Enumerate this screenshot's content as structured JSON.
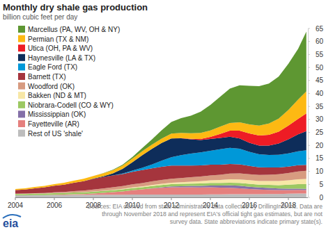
{
  "chart_data": {
    "type": "area",
    "stacked": true,
    "title": "Monthly dry shale gas production",
    "subtitle": "billion cubic feet per day",
    "annotations": [
      "Sources: EIA derived from state administrative data collected by DrillingInfo Inc. Data are",
      "through November 2018  and represent EIA's official tight gas estimates, but are not",
      "survey data. State abbreviations indicate primary state(s)."
    ],
    "logo": "eia",
    "legend": "top-left",
    "grid": false,
    "x": [
      2004,
      2004.5,
      2005,
      2005.5,
      2006,
      2006.5,
      2007,
      2007.5,
      2008,
      2008.5,
      2009,
      2009.5,
      2010,
      2010.5,
      2011,
      2011.5,
      2012,
      2012.5,
      2013,
      2013.5,
      2014,
      2014.5,
      2015,
      2015.5,
      2016,
      2016.5,
      2017,
      2017.5,
      2018,
      2018.5,
      2018.92
    ],
    "xlim": [
      2004,
      2019
    ],
    "xticks": [
      2004,
      2006,
      2008,
      2010,
      2012,
      2014,
      2016,
      2018
    ],
    "ylim": [
      0,
      65
    ],
    "yticks": [
      0,
      5,
      10,
      15,
      20,
      25,
      30,
      35,
      40,
      45,
      50,
      55,
      60,
      65
    ],
    "series": [
      {
        "name": "Marcellus (PA, WV, OH & NY)",
        "color": "#5e9732",
        "values": [
          0,
          0,
          0,
          0,
          0,
          0,
          0,
          0,
          0,
          0.05,
          0.15,
          0.3,
          0.6,
          1.2,
          2.0,
          3.2,
          4.5,
          5.7,
          6.8,
          8.2,
          9.8,
          11.5,
          13.2,
          14.2,
          14.8,
          15.2,
          15.4,
          16.2,
          17.8,
          19.5,
          23.0
        ]
      },
      {
        "name": "Permian (TX & NM)",
        "color": "#fdb913",
        "values": [
          0.4,
          0.45,
          0.5,
          0.55,
          0.6,
          0.7,
          0.8,
          0.9,
          1.0,
          1.1,
          1.2,
          1.3,
          1.4,
          1.5,
          1.6,
          1.7,
          1.9,
          2.0,
          2.1,
          2.3,
          2.5,
          2.8,
          3.0,
          3.2,
          3.5,
          3.8,
          4.3,
          5.0,
          6.0,
          7.4,
          8.5
        ]
      },
      {
        "name": "Utica (OH, PA & WV)",
        "color": "#ee1c25",
        "values": [
          0,
          0,
          0,
          0,
          0,
          0,
          0,
          0,
          0,
          0,
          0,
          0,
          0,
          0,
          0,
          0,
          0,
          0.05,
          0.2,
          0.4,
          0.8,
          1.5,
          2.3,
          3.0,
          3.6,
          3.9,
          4.2,
          4.6,
          5.3,
          6.0,
          6.8
        ]
      },
      {
        "name": "Haynesville (LA & TX)",
        "color": "#0e2d5a",
        "values": [
          0,
          0,
          0,
          0,
          0,
          0,
          0,
          0,
          0.1,
          0.3,
          0.8,
          1.8,
          3.2,
          4.8,
          6.0,
          6.8,
          7.2,
          6.5,
          5.5,
          4.8,
          4.5,
          4.4,
          4.3,
          4.0,
          3.5,
          3.3,
          3.6,
          4.3,
          5.4,
          6.5,
          7.4
        ]
      },
      {
        "name": "Eagle Ford (TX)",
        "color": "#0098d8",
        "values": [
          0,
          0,
          0,
          0,
          0,
          0,
          0,
          0,
          0,
          0,
          0.05,
          0.2,
          0.5,
          0.9,
          1.5,
          2.3,
          3.2,
          4.0,
          4.6,
          5.0,
          5.4,
          5.9,
          6.2,
          6.0,
          5.4,
          5.0,
          4.8,
          4.9,
          5.1,
          5.4,
          5.6
        ]
      },
      {
        "name": "Barnett (TX)",
        "color": "#a5353d",
        "values": [
          1.4,
          1.6,
          1.9,
          2.2,
          2.5,
          2.8,
          3.2,
          3.6,
          4.1,
          4.4,
          4.5,
          4.6,
          4.8,
          5.0,
          5.0,
          5.1,
          5.1,
          4.8,
          4.5,
          4.3,
          4.1,
          3.9,
          3.7,
          3.5,
          3.2,
          3.0,
          2.8,
          2.6,
          2.5,
          2.4,
          2.3
        ]
      },
      {
        "name": "Woodford (OK)",
        "color": "#d79b80",
        "values": [
          0.1,
          0.12,
          0.15,
          0.2,
          0.3,
          0.4,
          0.5,
          0.6,
          0.7,
          0.85,
          1.0,
          1.1,
          1.2,
          1.3,
          1.4,
          1.5,
          1.5,
          1.6,
          1.7,
          1.8,
          1.9,
          2.0,
          2.2,
          2.3,
          2.3,
          2.3,
          2.4,
          2.6,
          2.8,
          3.0,
          3.1
        ]
      },
      {
        "name": "Bakken (ND & MT)",
        "color": "#f7e7a6",
        "values": [
          0.02,
          0.02,
          0.03,
          0.03,
          0.05,
          0.05,
          0.05,
          0.08,
          0.1,
          0.12,
          0.15,
          0.2,
          0.25,
          0.3,
          0.4,
          0.45,
          0.55,
          0.65,
          0.75,
          0.85,
          1.0,
          1.15,
          1.3,
          1.35,
          1.4,
          1.4,
          1.5,
          1.6,
          1.7,
          1.9,
          2.0
        ]
      },
      {
        "name": "Niobrara-Codell (CO & WY)",
        "color": "#9cc862",
        "values": [
          0.5,
          0.5,
          0.55,
          0.55,
          0.6,
          0.6,
          0.65,
          0.65,
          0.7,
          0.7,
          0.75,
          0.75,
          0.8,
          0.8,
          0.85,
          0.85,
          0.9,
          0.9,
          0.9,
          0.95,
          1.0,
          1.0,
          1.05,
          1.05,
          1.1,
          1.1,
          1.2,
          1.3,
          1.5,
          1.7,
          1.8
        ]
      },
      {
        "name": "Mississippian (OK)",
        "color": "#8470a8",
        "values": [
          0,
          0,
          0,
          0,
          0,
          0,
          0,
          0,
          0,
          0,
          0,
          0,
          0,
          0.05,
          0.1,
          0.2,
          0.3,
          0.4,
          0.5,
          0.6,
          0.7,
          0.8,
          0.9,
          1.0,
          0.9,
          0.8,
          0.7,
          0.6,
          0.55,
          0.5,
          0.5
        ]
      },
      {
        "name": "Fayetteville (AR)",
        "color": "#e5807e",
        "values": [
          0,
          0,
          0.02,
          0.05,
          0.1,
          0.15,
          0.25,
          0.35,
          0.5,
          0.75,
          1.0,
          1.3,
          1.7,
          2.0,
          2.3,
          2.6,
          2.8,
          2.8,
          2.8,
          2.7,
          2.7,
          2.6,
          2.5,
          2.3,
          2.0,
          1.8,
          1.6,
          1.5,
          1.4,
          1.35,
          1.3
        ]
      },
      {
        "name": "Rest of US 'shale'",
        "color": "#bdbdbd",
        "values": [
          0.8,
          0.8,
          0.85,
          0.85,
          0.9,
          0.9,
          0.95,
          0.95,
          1.0,
          1.0,
          1.0,
          1.0,
          1.05,
          1.05,
          1.1,
          1.1,
          1.1,
          1.1,
          1.1,
          1.1,
          1.15,
          1.15,
          1.2,
          1.2,
          1.2,
          1.2,
          1.3,
          1.3,
          1.4,
          1.5,
          1.5
        ]
      }
    ]
  }
}
